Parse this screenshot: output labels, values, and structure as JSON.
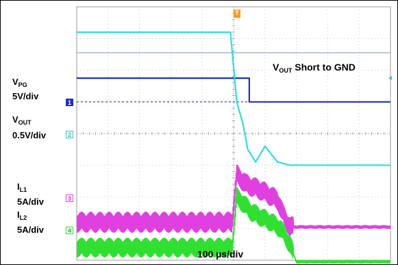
{
  "chart_data": {
    "type": "line",
    "grid": true,
    "labels": {
      "vpg_name": "V",
      "vpg_sub": "PG",
      "vpg_scale": "5V/div",
      "vout_name": "V",
      "vout_sub": "OUT",
      "vout_scale": "0.5V/div",
      "il1_name": "I",
      "il1_sub": "L1",
      "il1_scale": "5A/div",
      "il2_name": "I",
      "il2_sub": "L2",
      "il2_scale": "5A/div",
      "annotation_pre": "V",
      "annotation_sub": "OUT",
      "annotation_post": " Short to GND",
      "timebase": "100 µs/div"
    },
    "channel_markers": [
      "1",
      "2",
      "3",
      "4"
    ],
    "trigger_marker": "T",
    "x_range_div": [
      -5,
      5
    ],
    "y_range_div": [
      -4,
      4
    ],
    "series": [
      {
        "channel": "1",
        "color": "#1e2fbf",
        "x": [
          -5,
          0.5,
          0.5,
          5
        ],
        "y": [
          1.75,
          1.75,
          1.0,
          1.0
        ]
      },
      {
        "channel": "2",
        "color": "#28e0e0",
        "x": [
          -5,
          -0.1,
          0.1,
          0.3,
          0.45,
          0.7,
          1.0,
          1.4,
          1.8,
          2.2,
          5
        ],
        "y": [
          3.2,
          3.2,
          1.0,
          0.3,
          -0.5,
          -0.9,
          -0.4,
          -0.9,
          -1.0,
          -1.0,
          -1.0
        ]
      },
      {
        "channel": "3",
        "color": "#e040e0",
        "x": [
          -5,
          -0.05,
          0.1,
          0.4,
          0.9,
          1.4,
          1.6,
          1.8,
          5
        ],
        "y": [
          -2.8,
          -2.8,
          -1.3,
          -1.6,
          -1.8,
          -2.1,
          -2.6,
          -2.95,
          -2.95
        ]
      },
      {
        "channel": "4",
        "color": "#30e030",
        "x": [
          -5,
          -0.05,
          0.1,
          0.6,
          1.2,
          1.5,
          1.8,
          2.0,
          5
        ],
        "y": [
          -3.6,
          -3.6,
          -2.0,
          -2.5,
          -2.8,
          -3.0,
          -3.5,
          -4.05,
          -4.05
        ]
      }
    ]
  }
}
